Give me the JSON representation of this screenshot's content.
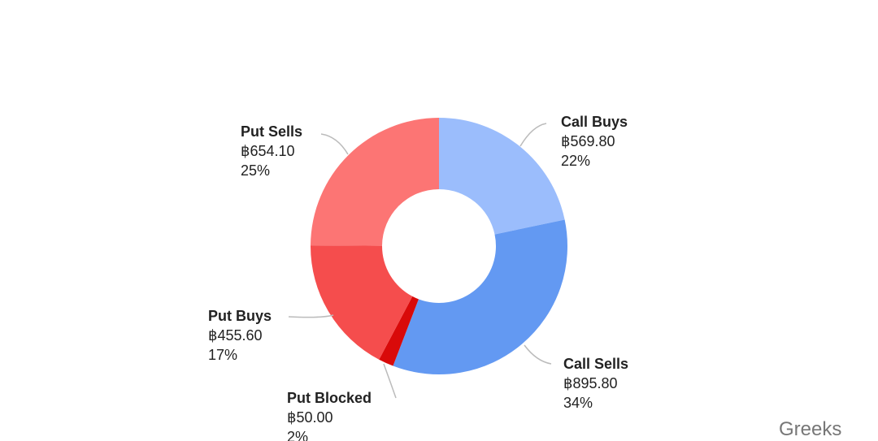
{
  "chart_data": {
    "type": "donut",
    "categories": [
      "Call Buys",
      "Call Sells",
      "Put Blocked",
      "Put Buys",
      "Put Sells"
    ],
    "values": [
      569.8,
      895.8,
      50.0,
      455.6,
      654.1
    ],
    "value_labels": [
      "฿569.80",
      "฿895.80",
      "฿50.00",
      "฿455.60",
      "฿654.10"
    ],
    "percent_labels": [
      "22%",
      "34%",
      "2%",
      "17%",
      "25%"
    ],
    "colors": [
      "#9bbdfc",
      "#6399f2",
      "#d90a0a",
      "#f54d4d",
      "#fc7574"
    ]
  },
  "watermark": "Greeks"
}
